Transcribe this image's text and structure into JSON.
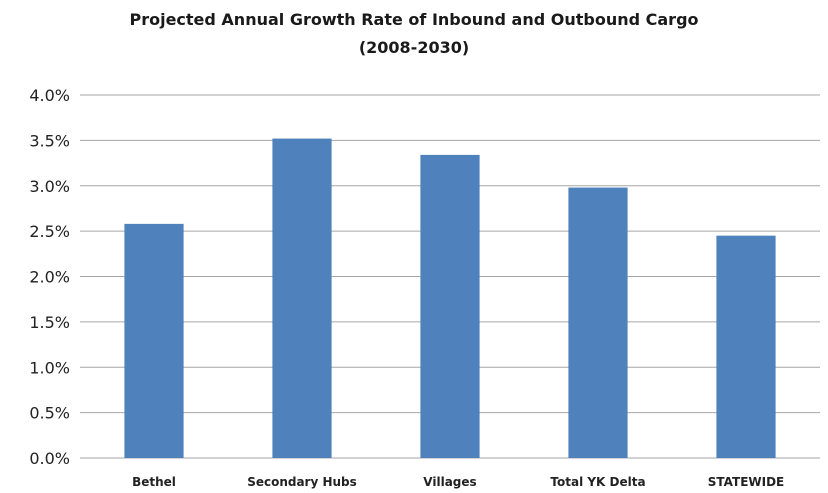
{
  "chart_data": {
    "type": "bar",
    "title": "Projected Annual Growth Rate of Inbound and Outbound Cargo",
    "subtitle": "(2008-2030)",
    "xlabel": "",
    "ylabel": "",
    "categories": [
      "Bethel",
      "Secondary Hubs",
      "Villages",
      "Total YK Delta",
      "STATEWIDE"
    ],
    "values": [
      2.58,
      3.52,
      3.34,
      2.98,
      2.45
    ],
    "ylim": [
      0,
      4.0
    ],
    "yticks": [
      0,
      0.5,
      1.0,
      1.5,
      2.0,
      2.5,
      3.0,
      3.5,
      4.0
    ],
    "ytick_labels": [
      "0.0%",
      "0.5%",
      "1.0%",
      "1.5%",
      "2.0%",
      "2.5%",
      "3.0%",
      "3.5%",
      "4.0%"
    ],
    "grid": true,
    "legend": "none",
    "bar_color": "#4f81bd",
    "grid_color": "#a6a6a6"
  }
}
